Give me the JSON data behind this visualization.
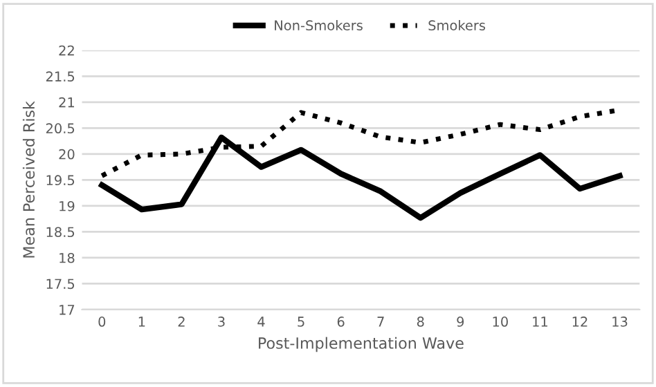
{
  "chart_data": {
    "type": "line",
    "xlabel": "Post-Implementation Wave",
    "ylabel": "Mean Perceived Risk",
    "categories": [
      "0",
      "1",
      "2",
      "3",
      "4",
      "5",
      "6",
      "7",
      "8",
      "9",
      "10",
      "11",
      "12",
      "13"
    ],
    "series": [
      {
        "name": "Non-Smokers",
        "color": "#000000",
        "line_style": "solid",
        "values": [
          19.4,
          18.93,
          19.03,
          20.32,
          19.75,
          20.08,
          19.62,
          19.28,
          18.77,
          19.25,
          19.62,
          19.98,
          19.33,
          19.58
        ]
      },
      {
        "name": "Smokers",
        "color": "#000000",
        "line_style": "dotted",
        "values": [
          19.58,
          19.98,
          20.0,
          20.13,
          20.15,
          20.8,
          20.6,
          20.33,
          20.22,
          20.38,
          20.57,
          20.47,
          20.72,
          20.85
        ]
      }
    ],
    "ylim": [
      17,
      22
    ],
    "yticks": [
      17,
      17.5,
      18,
      18.5,
      19,
      19.5,
      20,
      20.5,
      21,
      21.5,
      22
    ],
    "grid": "y",
    "legend": "top",
    "marker": "none"
  }
}
